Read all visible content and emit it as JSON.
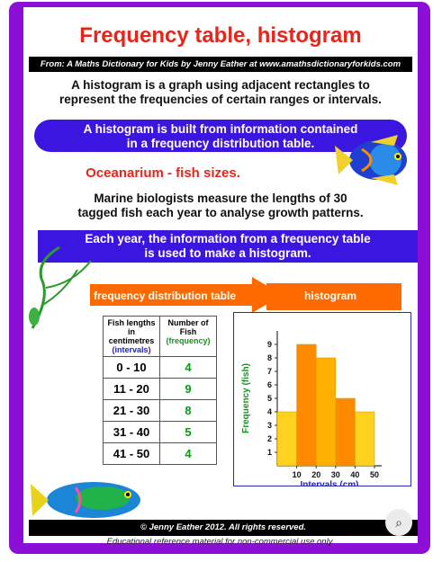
{
  "poster": {
    "title": "Frequency table, histogram",
    "source": "From: A Maths Dictionary for Kids by Jenny Eather at www.amathsdictionaryforkids.com",
    "intro_line1": "A histogram is a graph using adjacent rectangles to",
    "intro_line2": "represent the frequencies of certain ranges or intervals.",
    "pill_line1": "A histogram is built from information contained",
    "pill_line2": "in a frequency distribution table.",
    "subtitle": "Oceanarium -  fish sizes.",
    "para_line1": "Marine biologists measure the lengths of 30",
    "para_line2": "tagged fish each year to analyse growth patterns.",
    "band_line1": "Each year, the information from a frequency table",
    "band_line2": "is used to make a histogram.",
    "arrow_table_label": "frequency distribution table",
    "arrow_hist_label": "histogram",
    "copyright": "© Jenny Eather 2012. All rights reserved.",
    "footnote": "Educational reference material for non-commercial use only.",
    "lens_icon": "⌕"
  },
  "table": {
    "head1_a": "Fish lengths",
    "head1_b": "in",
    "head1_c": "centimetres",
    "head1_d": "(intervals)",
    "head2_a": "Number of",
    "head2_b": "Fish",
    "head2_c": "(frequency)",
    "rows": [
      {
        "interval": "0 -  10",
        "freq": "4"
      },
      {
        "interval": "11 -  20",
        "freq": "9"
      },
      {
        "interval": "21 -  30",
        "freq": "8"
      },
      {
        "interval": "31 -  40",
        "freq": "5"
      },
      {
        "interval": "41 -  50",
        "freq": "4"
      }
    ]
  },
  "chart_data": {
    "type": "bar",
    "categories": [
      "0-10",
      "11-20",
      "21-30",
      "31-40",
      "41-50"
    ],
    "values": [
      4,
      9,
      8,
      5,
      4
    ],
    "xticks": [
      "10",
      "20",
      "30",
      "40",
      "50"
    ],
    "yticks": [
      "1",
      "2",
      "3",
      "4",
      "5",
      "6",
      "7",
      "8",
      "9"
    ],
    "xlabel": "Intervals (cm)",
    "ylabel": "Frequency (fish)",
    "ylim": [
      0,
      10
    ],
    "xlim": [
      0,
      50
    ],
    "colors": [
      "#ffd21f",
      "#ff8a00",
      "#ffb000",
      "#ff8a00",
      "#ffd21f"
    ]
  },
  "colors": {
    "frame": "#8b0fd6",
    "title": "#e8251b",
    "band": "#3a16e0",
    "arrow": "#ff6a00"
  }
}
